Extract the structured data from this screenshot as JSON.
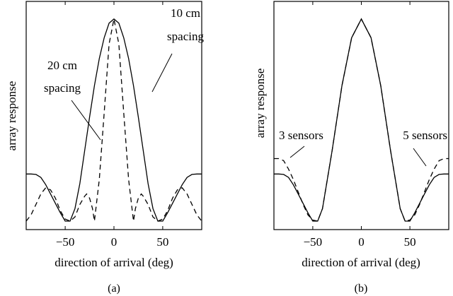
{
  "chart_data": [
    {
      "type": "line",
      "panel_label": "(a)",
      "xlabel": "direction of arrival (deg)",
      "ylabel": "array response",
      "xlim": [
        -90,
        90
      ],
      "ylim": [
        0,
        1
      ],
      "xticks": [
        -50,
        0,
        50
      ],
      "xtick_labels": [
        "−50",
        "0",
        "50"
      ],
      "series": [
        {
          "style": "solid",
          "x": [
            -90,
            -85,
            -80,
            -75,
            -70,
            -65,
            -60,
            -55,
            -50,
            -45,
            -40,
            -35,
            -30,
            -25,
            -20,
            -15,
            -10,
            -5,
            0,
            5,
            10,
            15,
            20,
            25,
            30,
            35,
            40,
            45,
            50,
            55,
            60,
            65,
            70,
            75,
            80,
            85,
            90
          ],
          "y": [
            0.226,
            0.226,
            0.224,
            0.21,
            0.175,
            0.13,
            0.085,
            0.04,
            0.0,
            0.0,
            0.06,
            0.18,
            0.34,
            0.5,
            0.65,
            0.78,
            0.88,
            0.95,
            0.97,
            0.95,
            0.88,
            0.78,
            0.65,
            0.5,
            0.34,
            0.18,
            0.06,
            0.0,
            0.0,
            0.04,
            0.085,
            0.13,
            0.175,
            0.21,
            0.224,
            0.226,
            0.226
          ]
        },
        {
          "style": "dashed",
          "x": [
            -90,
            -85,
            -80,
            -75,
            -70,
            -65,
            -60,
            -55,
            -50,
            -45,
            -40,
            -35,
            -30,
            -28,
            -25,
            -22,
            -20,
            -15,
            -10,
            -5,
            0,
            5,
            10,
            15,
            20,
            22,
            25,
            28,
            30,
            35,
            40,
            45,
            50,
            55,
            60,
            65,
            70,
            75,
            80,
            85,
            90
          ],
          "y": [
            0.0,
            0.03,
            0.08,
            0.13,
            0.16,
            0.15,
            0.11,
            0.05,
            0.01,
            0.0,
            0.02,
            0.08,
            0.12,
            0.13,
            0.11,
            0.06,
            0.0,
            0.2,
            0.52,
            0.85,
            0.97,
            0.85,
            0.52,
            0.2,
            0.0,
            0.06,
            0.11,
            0.13,
            0.12,
            0.08,
            0.02,
            0.0,
            0.01,
            0.05,
            0.11,
            0.15,
            0.16,
            0.13,
            0.08,
            0.03,
            0.0
          ]
        }
      ],
      "annotations": [
        {
          "lines": [
            "10 cm",
            "spacing"
          ],
          "target_series": "solid"
        },
        {
          "lines": [
            "20 cm",
            "spacing"
          ],
          "target_series": "dashed"
        }
      ]
    },
    {
      "type": "line",
      "panel_label": "(b)",
      "xlabel": "direction of arrival (deg)",
      "ylabel": "array response",
      "xlim": [
        -90,
        90
      ],
      "ylim": [
        0,
        1
      ],
      "xticks": [
        -50,
        0,
        50
      ],
      "xtick_labels": [
        "−50",
        "0",
        "50"
      ],
      "series": [
        {
          "style": "solid",
          "x": [
            -90,
            -85,
            -80,
            -75,
            -70,
            -65,
            -60,
            -55,
            -50,
            -45,
            -40,
            -30,
            -20,
            -10,
            0,
            10,
            20,
            30,
            40,
            45,
            50,
            55,
            60,
            65,
            70,
            75,
            80,
            85,
            90
          ],
          "y": [
            0.226,
            0.226,
            0.224,
            0.21,
            0.175,
            0.13,
            0.085,
            0.04,
            0.0,
            0.0,
            0.06,
            0.34,
            0.65,
            0.88,
            0.97,
            0.88,
            0.65,
            0.34,
            0.06,
            0.0,
            0.0,
            0.04,
            0.085,
            0.13,
            0.175,
            0.21,
            0.224,
            0.226,
            0.226
          ]
        },
        {
          "style": "dashed",
          "x": [
            -90,
            -85,
            -80,
            -75,
            -70,
            -65,
            -60,
            -55,
            -50,
            -45,
            -40,
            -30,
            -20,
            -10,
            0,
            10,
            20,
            30,
            40,
            45,
            50,
            55,
            60,
            65,
            70,
            75,
            80,
            85,
            90
          ],
          "y": [
            0.3,
            0.3,
            0.29,
            0.25,
            0.2,
            0.14,
            0.08,
            0.03,
            0.005,
            0.0,
            0.06,
            0.34,
            0.65,
            0.88,
            0.97,
            0.88,
            0.65,
            0.34,
            0.06,
            0.0,
            0.005,
            0.03,
            0.08,
            0.14,
            0.2,
            0.25,
            0.29,
            0.3,
            0.3
          ]
        }
      ],
      "annotations": [
        {
          "lines": [
            "3 sensors"
          ],
          "target_series": "dashed"
        },
        {
          "lines": [
            "5 sensors"
          ],
          "target_series": "dashed"
        }
      ]
    }
  ]
}
